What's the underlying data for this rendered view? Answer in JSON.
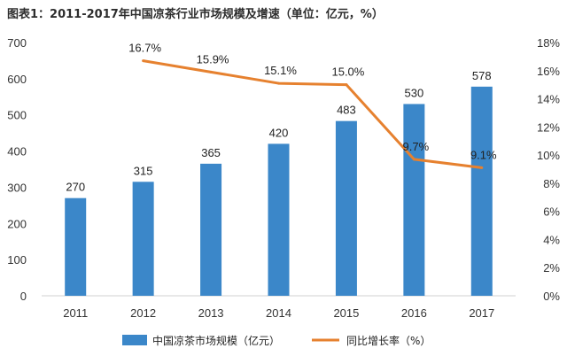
{
  "chart_data": {
    "type": "bar+line",
    "title": "图表1：2011-2017年中国凉茶行业市场规模及增速（单位：亿元，%）",
    "categories": [
      "2011",
      "2012",
      "2013",
      "2014",
      "2015",
      "2016",
      "2017"
    ],
    "series": [
      {
        "name": "中国凉茶市场规模（亿元）",
        "type": "bar",
        "axis": "left",
        "color": "#3b87c9",
        "values": [
          270,
          315,
          365,
          420,
          483,
          530,
          578
        ]
      },
      {
        "name": "同比增长率（%）",
        "type": "line",
        "axis": "right",
        "color": "#e6812f",
        "values": [
          null,
          16.7,
          15.9,
          15.1,
          15.0,
          9.7,
          9.1
        ],
        "labels": [
          "",
          "16.7%",
          "15.9%",
          "15.1%",
          "15.0%",
          "9.7%",
          "9.1%"
        ]
      }
    ],
    "y_left": {
      "ylim": [
        0,
        700
      ],
      "ticks": [
        "0",
        "100",
        "200",
        "300",
        "400",
        "500",
        "600",
        "700"
      ]
    },
    "y_right": {
      "ylim": [
        0,
        18
      ],
      "ticks": [
        "0%",
        "2%",
        "4%",
        "6%",
        "8%",
        "10%",
        "12%",
        "14%",
        "16%",
        "18%"
      ]
    },
    "grid": false,
    "legend_position": "bottom"
  }
}
